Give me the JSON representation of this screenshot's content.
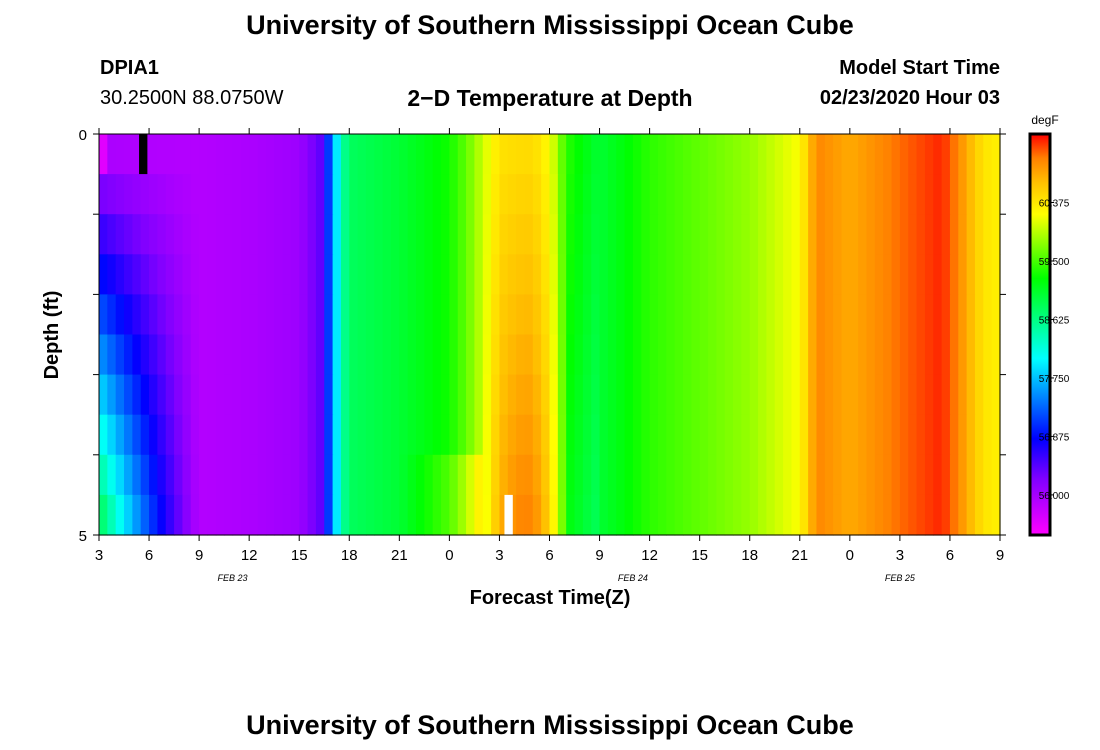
{
  "page": {
    "title_top": "University of Southern Mississippi Ocean Cube",
    "title_bottom": "University of Southern Mississippi Ocean Cube",
    "station_id": "DPIA1",
    "station_coords": "30.2500N 88.0750W",
    "plot_title": "2−D Temperature at Depth",
    "model_start_label": "Model Start Time",
    "model_start_value": "02/23/2020 Hour 03"
  },
  "chart_data": {
    "type": "heatmap",
    "title": "2−D Temperature at Depth",
    "xlabel": "Forecast Time(Z)",
    "ylabel": "Depth (ft)",
    "x_tick_labels": [
      "3",
      "6",
      "9",
      "12",
      "15",
      "18",
      "21",
      "0",
      "3",
      "6",
      "9",
      "12",
      "15",
      "18",
      "21",
      "0",
      "3",
      "6",
      "9"
    ],
    "x_date_labels": [
      {
        "text": "FEB 23",
        "at_hour": 11
      },
      {
        "text": "FEB 24",
        "at_hour": 35
      },
      {
        "text": "FEB 25",
        "at_hour": 51
      }
    ],
    "y_tick_labels": [
      "0",
      "5"
    ],
    "y_range_ft": [
      0,
      5
    ],
    "x_range_hours": [
      3,
      57
    ],
    "colorbar": {
      "unit": "degF",
      "tick_labels": [
        "60.375",
        "59.500",
        "58.625",
        "57.750",
        "56.875",
        "56.000"
      ],
      "tick_values": [
        60.375,
        59.5,
        58.625,
        57.75,
        56.875,
        56.0
      ],
      "range": [
        55.4,
        61.4
      ]
    },
    "depth_layers_ft": [
      0.25,
      0.75,
      1.25,
      1.75,
      2.25,
      2.75,
      3.25,
      3.75,
      4.25,
      4.75
    ],
    "time_hours": [
      3,
      6,
      9,
      12,
      15,
      18,
      21,
      24,
      27,
      30,
      33,
      36,
      39,
      42,
      45,
      48,
      51,
      54,
      57
    ],
    "temperature_anomalies": [
      {
        "note": "missing",
        "hour_start": 5.4,
        "hour_end": 5.9,
        "depth_start": 0,
        "depth_end": 0.5,
        "color": "#000000"
      },
      {
        "note": "missing",
        "hour_start": 27.3,
        "hour_end": 27.8,
        "depth_start": 4.5,
        "depth_end": 5,
        "color": "#ffffff"
      }
    ]
  }
}
